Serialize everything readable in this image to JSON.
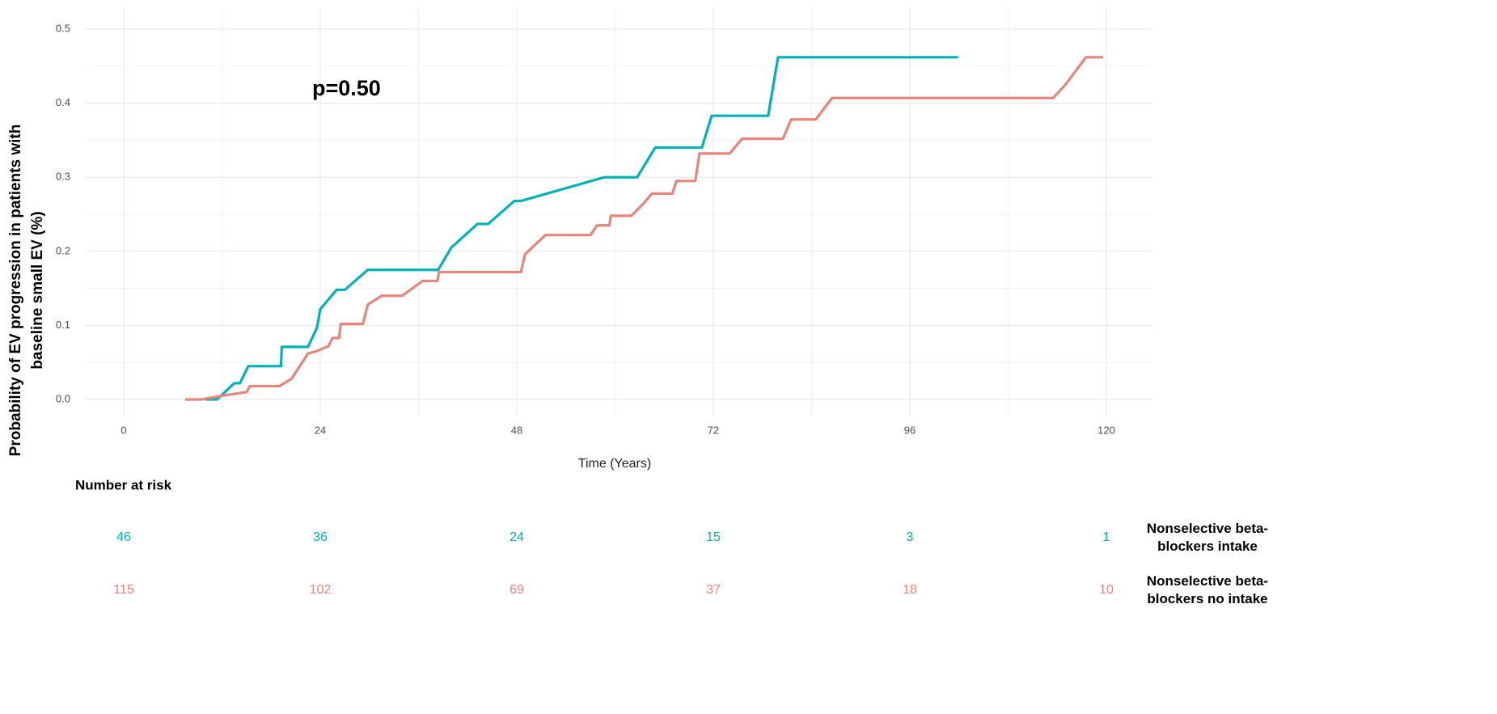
{
  "chart_data": {
    "type": "line",
    "annotation": "p=0.50",
    "x_label": "Time (Years)",
    "y_label": "Probability of EV progression in patients with baseline small EV (%)",
    "xlim": [
      -4.74,
      125.63
    ],
    "ylim": [
      -0.0229,
      0.5284
    ],
    "xticks": [
      0,
      24,
      48,
      72,
      96,
      120
    ],
    "yticks": [
      {
        "value": 0,
        "label": "0.0"
      },
      0.1,
      0.2,
      0.3,
      0.4,
      0.5
    ],
    "grid": true,
    "minor_grid": true,
    "series": [
      {
        "name": "Nonselective beta-blockers intake",
        "color": "#00b2b5",
        "x": [
          10,
          11.4,
          13.5,
          14.2,
          15.2,
          19.2,
          19.3,
          22.5,
          23.6,
          24,
          26,
          27,
          29.8,
          38.4,
          40,
          43.2,
          44.5,
          47.7,
          48.5,
          58.7,
          62.7,
          64.9,
          70.6,
          71.8,
          78.7,
          79.9,
          101.9
        ],
        "values": [
          0,
          0,
          0.022,
          0.022,
          0.045,
          0.045,
          0.071,
          0.071,
          0.097,
          0.122,
          0.148,
          0.148,
          0.175,
          0.175,
          0.205,
          0.237,
          0.237,
          0.268,
          0.268,
          0.3,
          0.3,
          0.34,
          0.34,
          0.383,
          0.383,
          0.462,
          0.462
        ]
      },
      {
        "name": "Nonselective beta-blockers no intake",
        "color": "#e6857b",
        "x": [
          7.5,
          9.5,
          12,
          15,
          15.4,
          19,
          20.5,
          21.5,
          22.5,
          23.5,
          25,
          25.5,
          26.3,
          26.5,
          29.2,
          29.8,
          31.5,
          34,
          36.5,
          38.3,
          38.5,
          48.5,
          49,
          51.5,
          57,
          57.8,
          59.3,
          59.5,
          62,
          63.5,
          64.5,
          67,
          67.5,
          69.8,
          70.3,
          74,
          75.5,
          80.5,
          81.5,
          84.5,
          86.5,
          113.5,
          115,
          117.5,
          119.6
        ],
        "values": [
          0,
          0,
          0.005,
          0.01,
          0.018,
          0.018,
          0.028,
          0.045,
          0.062,
          0.065,
          0.072,
          0.083,
          0.083,
          0.102,
          0.102,
          0.128,
          0.14,
          0.14,
          0.16,
          0.16,
          0.172,
          0.172,
          0.196,
          0.222,
          0.222,
          0.235,
          0.235,
          0.248,
          0.248,
          0.265,
          0.278,
          0.278,
          0.295,
          0.295,
          0.332,
          0.332,
          0.352,
          0.352,
          0.378,
          0.378,
          0.407,
          0.407,
          0.425,
          0.462,
          0.462
        ]
      }
    ],
    "risk_table": {
      "title": "Number at risk",
      "rows": [
        {
          "counts": [
            46,
            36,
            24,
            15,
            3,
            1
          ]
        },
        {
          "counts": [
            115,
            102,
            69,
            37,
            18,
            10
          ]
        }
      ]
    }
  }
}
